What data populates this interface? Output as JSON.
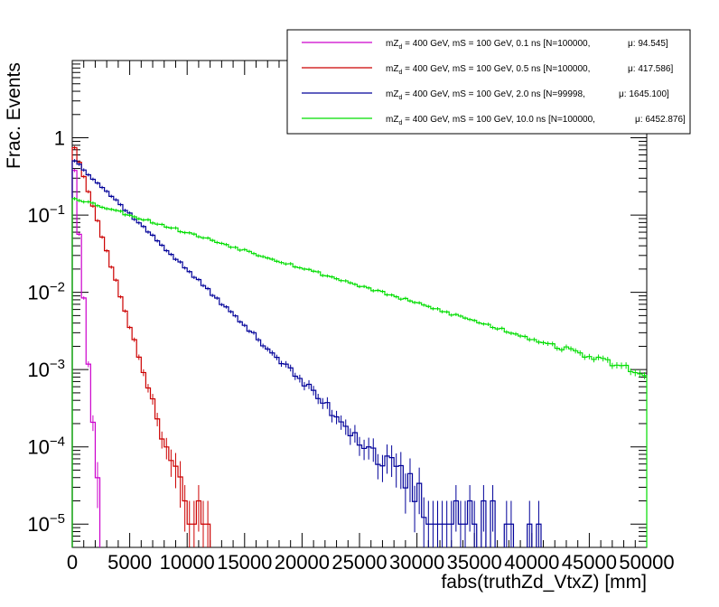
{
  "chart_data": {
    "type": "line",
    "style": "histogram-step-with-error-bars",
    "xlabel": "fabs(truthZd_VtxZ) [mm]",
    "ylabel": "Frac. Events",
    "xlim": [
      0,
      50000
    ],
    "ylim": [
      5e-06,
      10
    ],
    "yscale": "log",
    "bin_width": 400,
    "x_ticks": [
      0,
      5000,
      10000,
      15000,
      20000,
      25000,
      30000,
      35000,
      40000,
      45000,
      50000
    ],
    "x_tick_labels": [
      "0",
      "5000",
      "10000",
      "15000",
      "20000",
      "25000",
      "30000",
      "35000",
      "40000",
      "45000",
      "50000"
    ],
    "y_ticks": [
      {
        "value": 1,
        "base": "1",
        "exp": ""
      },
      {
        "value": 0.1,
        "base": "10",
        "exp": "−1"
      },
      {
        "value": 0.01,
        "base": "10",
        "exp": "−2"
      },
      {
        "value": 0.001,
        "base": "10",
        "exp": "−3"
      },
      {
        "value": 0.0001,
        "base": "10",
        "exp": "−4"
      },
      {
        "value": 1e-05,
        "base": "10",
        "exp": "−5"
      }
    ],
    "grid": false,
    "legend_position": "top-right",
    "series": [
      {
        "legend": {
          "pre": "mZ",
          "sub": "d",
          "post": " = 400 GeV, mS = 100 GeV, 0.1 ns [N=100000,",
          "mu": "μ: 94.545]"
        },
        "color": "#cc00cc",
        "y_start": 1.0,
        "decay_length": 210,
        "floor": 1e-05,
        "cutoff": 5200,
        "noise_seed": 11
      },
      {
        "legend": {
          "pre": "mZ",
          "sub": "d",
          "post": " = 400 GeV, mS = 100 GeV, 0.5 ns [N=100000,",
          "mu": "μ: 417.586]"
        },
        "color": "#cc0000",
        "y_start": 0.95,
        "decay_length": 900,
        "floor": 1e-05,
        "cutoff": 28000,
        "noise_seed": 23
      },
      {
        "legend": {
          "pre": "mZ",
          "sub": "d",
          "post": " = 400 GeV, mS = 100 GeV, 2.0 ns [N=99998,",
          "mu": "μ: 1645.100]"
        },
        "color": "#000099",
        "y_start": 0.55,
        "decay_length": 3000,
        "floor": 1e-05,
        "cutoff": 50000,
        "noise_seed": 37
      },
      {
        "legend": {
          "pre": "mZ",
          "sub": "d",
          "post": " = 400 GeV, mS = 100 GeV, 10.0 ns [N=100000,",
          "mu": "μ: 6452.876]"
        },
        "color": "#00dd00",
        "y_start": 0.17,
        "decay_length": 9500,
        "floor": 1e-05,
        "cutoff": 50000,
        "noise_seed": 53
      }
    ]
  }
}
